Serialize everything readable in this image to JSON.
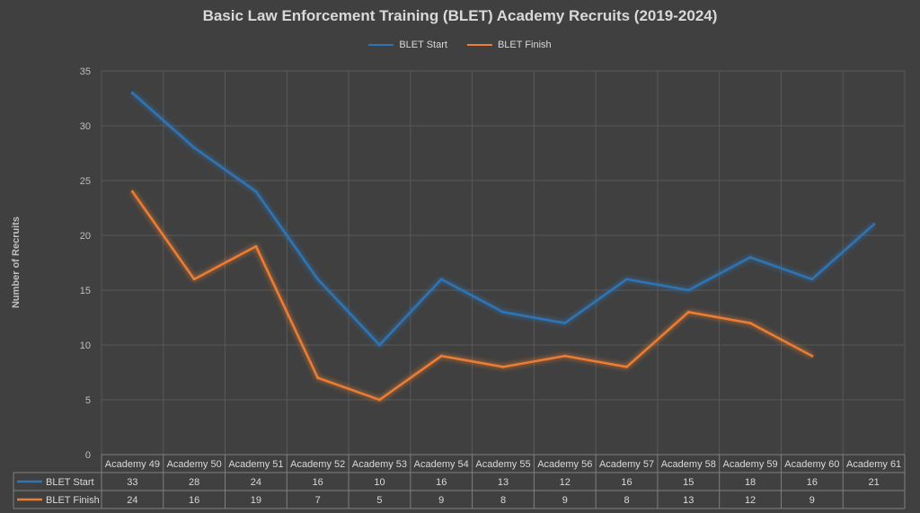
{
  "chart_data": {
    "type": "line",
    "title": "Basic Law Enforcement Training (BLET) Academy Recruits (2019-2024)",
    "ylabel": "Number of Recruits",
    "xlabel": "",
    "ylim": [
      0,
      35
    ],
    "yticks": [
      0,
      5,
      10,
      15,
      20,
      25,
      30,
      35
    ],
    "grid": true,
    "legend": "top-center",
    "data_table": true,
    "categories": [
      "Academy 49",
      "Academy 50",
      "Academy 51",
      "Academy 52",
      "Academy 53",
      "Academy 54",
      "Academy 55",
      "Academy 56",
      "Academy 57",
      "Academy 58",
      "Academy 59",
      "Academy 60",
      "Academy 61"
    ],
    "series": [
      {
        "name": "BLET Start",
        "color": "#2e75b6",
        "values": [
          33,
          28,
          24,
          16,
          10,
          16,
          13,
          12,
          16,
          15,
          18,
          16,
          21
        ]
      },
      {
        "name": "BLET Finish",
        "color": "#ed7d31",
        "values": [
          24,
          16,
          19,
          7,
          5,
          9,
          8,
          9,
          8,
          13,
          12,
          9,
          null
        ]
      }
    ]
  }
}
